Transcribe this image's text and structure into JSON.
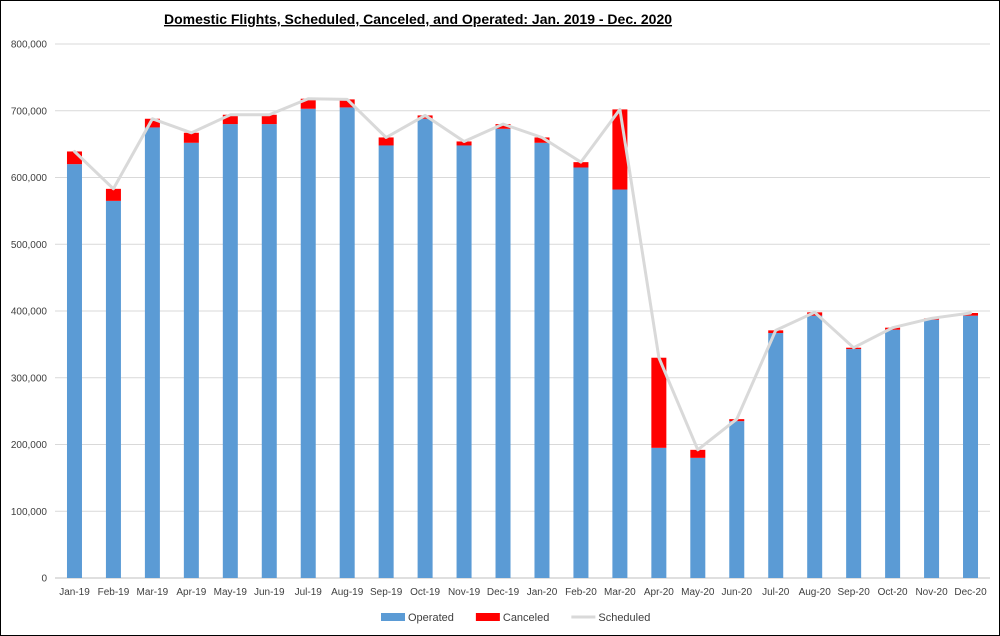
{
  "chart_data": {
    "type": "bar",
    "stacked": true,
    "title": "Domestic Flights, Scheduled, Canceled, and Operated: Jan. 2019  - Dec. 2020",
    "xlabel": "",
    "ylabel": "",
    "ylim": [
      0,
      800000
    ],
    "yticks": [
      0,
      100000,
      200000,
      300000,
      400000,
      500000,
      600000,
      700000,
      800000
    ],
    "ytick_labels": [
      "0",
      "100,000",
      "200,000",
      "300,000",
      "400,000",
      "500,000",
      "600,000",
      "700,000",
      "800,000"
    ],
    "grid": true,
    "legend_position": "bottom",
    "categories": [
      "Jan-19",
      "Feb-19",
      "Mar-19",
      "Apr-19",
      "May-19",
      "Jun-19",
      "Jul-19",
      "Aug-19",
      "Sep-19",
      "Oct-19",
      "Nov-19",
      "Dec-19",
      "Jan-20",
      "Feb-20",
      "Mar-20",
      "Apr-20",
      "May-20",
      "Jun-20",
      "Jul-20",
      "Aug-20",
      "Sep-20",
      "Oct-20",
      "Nov-20",
      "Dec-20"
    ],
    "series": [
      {
        "name": "Operated",
        "kind": "bar",
        "color": "#5b9bd5",
        "values": [
          620000,
          565000,
          675000,
          652000,
          680000,
          680000,
          703000,
          705000,
          648000,
          688000,
          648000,
          673000,
          652000,
          615000,
          582000,
          195000,
          180000,
          235000,
          367000,
          393000,
          343000,
          372000,
          387000,
          393000
        ]
      },
      {
        "name": "Canceled",
        "kind": "bar",
        "color": "#ff0000",
        "values": [
          19000,
          18000,
          13000,
          15000,
          14000,
          14000,
          15000,
          12000,
          12000,
          5000,
          6000,
          7000,
          8000,
          8000,
          120000,
          135000,
          12000,
          3000,
          4000,
          5000,
          2000,
          3000,
          2000,
          4000
        ]
      },
      {
        "name": "Scheduled",
        "kind": "line",
        "color": "#d9d9d9",
        "values": [
          639000,
          583000,
          688000,
          667000,
          694000,
          694000,
          718000,
          717000,
          660000,
          693000,
          654000,
          680000,
          660000,
          623000,
          702000,
          330000,
          192000,
          238000,
          371000,
          398000,
          345000,
          375000,
          389000,
          397000
        ]
      }
    ]
  }
}
